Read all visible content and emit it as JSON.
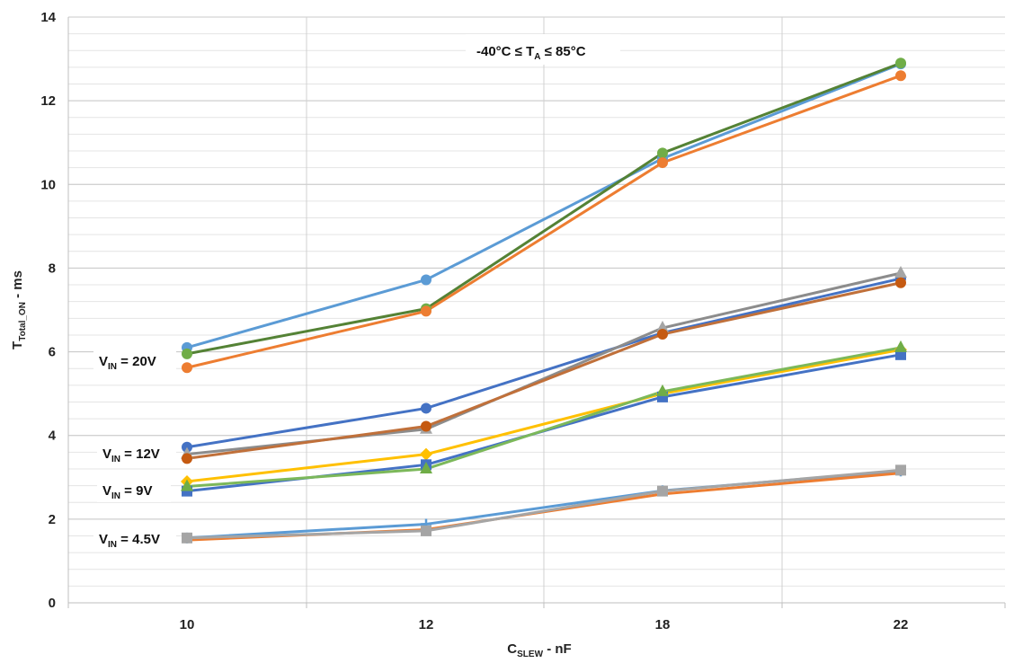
{
  "chart_data": {
    "type": "line",
    "categories": [
      "10",
      "12",
      "18",
      "22"
    ],
    "ylim": [
      0,
      14
    ],
    "yticks": [
      0,
      2,
      4,
      6,
      8,
      10,
      12,
      14
    ],
    "grid": true,
    "xlabel": {
      "main": "C",
      "sub": "SLEW",
      "suffix": " - nF"
    },
    "ylabel": {
      "main": "T",
      "sub": "Total_ON",
      "suffix": " - ms"
    },
    "annotation": {
      "part1": "-40°C ≤ T",
      "sub": "A",
      "part2": " ≤ 85°C"
    },
    "group_labels": [
      {
        "main": "V",
        "sub": "IN",
        "suffix": " = 20V",
        "y": 5.95
      },
      {
        "main": "V",
        "sub": "IN",
        "suffix": " = 12V",
        "y": 3.6
      },
      {
        "main": "V",
        "sub": "IN",
        "suffix": " = 9V",
        "y": 2.75
      },
      {
        "main": "V",
        "sub": "IN",
        "suffix": " = 4.5V",
        "y": 1.55
      }
    ],
    "series": [
      {
        "group": "20V",
        "values": [
          6.1,
          7.72,
          10.62,
          12.88
        ],
        "color": "#5B9BD5",
        "marker": "circle"
      },
      {
        "group": "20V",
        "values": [
          5.95,
          7.03,
          10.75,
          12.9
        ],
        "color": "#70AD47",
        "marker": "circle",
        "stroke": "#548235"
      },
      {
        "group": "20V",
        "values": [
          5.62,
          6.97,
          10.52,
          12.6
        ],
        "color": "#ED7D31",
        "marker": "circle"
      },
      {
        "group": "12V",
        "values": [
          3.72,
          4.65,
          6.45,
          7.75
        ],
        "color": "#4472C4",
        "marker": "circle"
      },
      {
        "group": "12V",
        "values": [
          3.55,
          4.15,
          6.57,
          7.88
        ],
        "color": "#A5A5A5",
        "marker": "triangle",
        "stroke": "#8C8C8C"
      },
      {
        "group": "12V",
        "values": [
          3.45,
          4.22,
          6.42,
          7.65
        ],
        "color": "#C55A11",
        "marker": "circle",
        "stroke": "#C0703A"
      },
      {
        "group": "9V",
        "values": [
          2.9,
          3.55,
          5.0,
          6.05
        ],
        "color": "#FFC000",
        "marker": "diamond"
      },
      {
        "group": "9V",
        "values": [
          2.67,
          3.3,
          4.92,
          5.93
        ],
        "color": "#4472C4",
        "marker": "square"
      },
      {
        "group": "9V",
        "values": [
          2.78,
          3.2,
          5.05,
          6.1
        ],
        "color": "#70AD47",
        "marker": "triangle",
        "stroke": "#7CB85A"
      },
      {
        "group": "4.5V",
        "values": [
          1.55,
          1.88,
          2.68,
          3.15
        ],
        "color": "#5B9BD5",
        "marker": "plus"
      },
      {
        "group": "4.5V",
        "values": [
          1.5,
          1.75,
          2.6,
          3.1
        ],
        "color": "#ED7D31",
        "marker": "dash"
      },
      {
        "group": "4.5V",
        "values": [
          1.55,
          1.72,
          2.67,
          3.17
        ],
        "color": "#A5A5A5",
        "marker": "square"
      }
    ]
  }
}
